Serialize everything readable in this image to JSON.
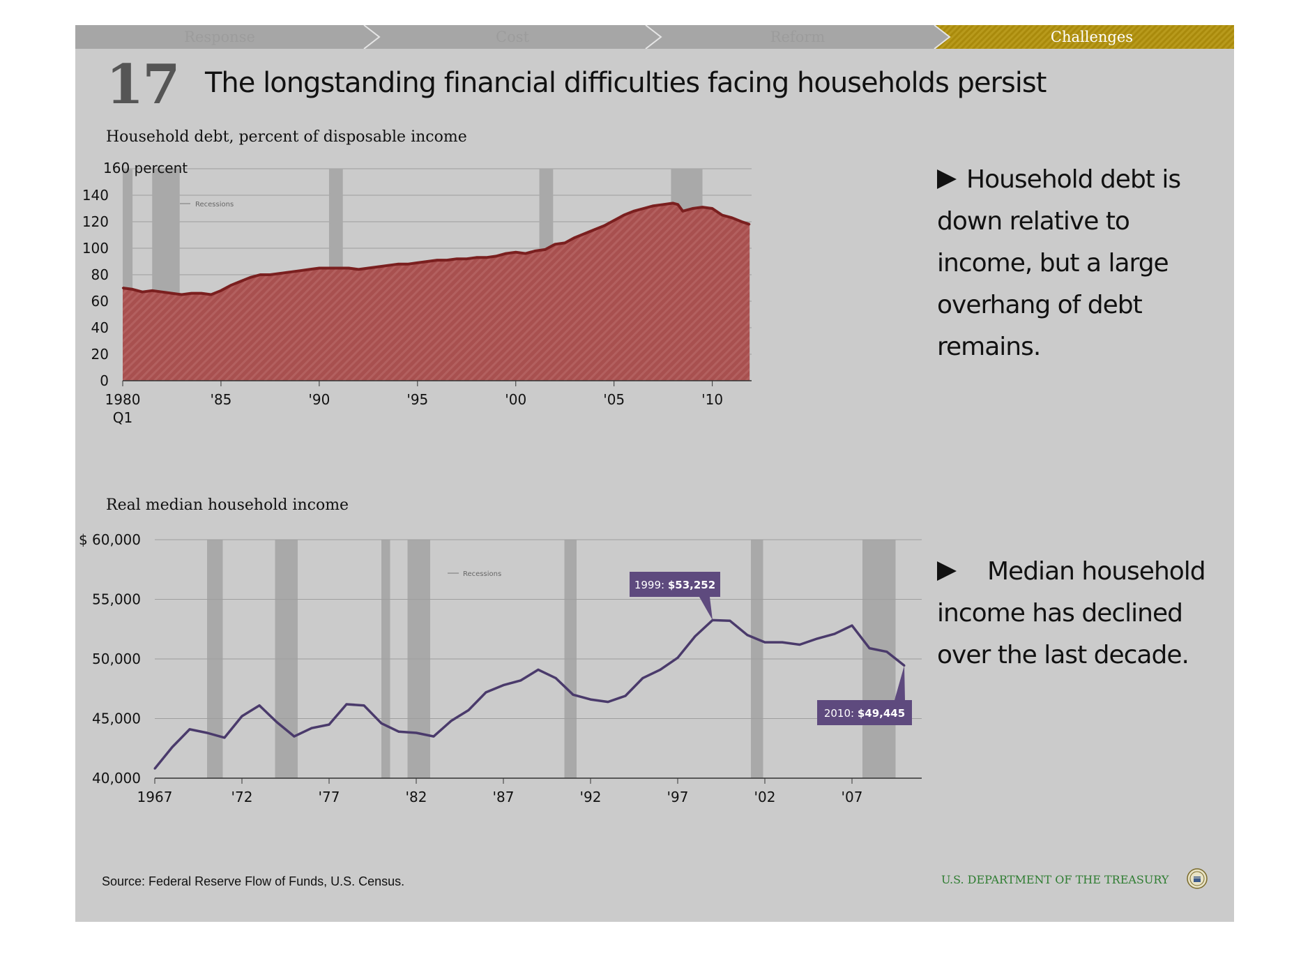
{
  "nav": {
    "tabs": [
      {
        "label": "Response",
        "active": false
      },
      {
        "label": "Cost",
        "active": false
      },
      {
        "label": "Reform",
        "active": false
      },
      {
        "label": "Challenges",
        "active": true
      }
    ],
    "colors": {
      "inactive": "#a6a6a6",
      "active": "#a98a0c"
    }
  },
  "slide": {
    "number": "17",
    "title": "The longstanding financial difficulties facing households persist"
  },
  "chart_data": [
    {
      "type": "area",
      "title": "Household debt, percent of disposable income",
      "ytop_label": "160 percent",
      "yticks": [
        0,
        20,
        40,
        60,
        80,
        100,
        120,
        140
      ],
      "ylim": [
        0,
        160
      ],
      "xlim": [
        1980,
        2012
      ],
      "xtick_values": [
        1980,
        1985,
        1990,
        1995,
        2000,
        2005,
        2010
      ],
      "xtick_labels": [
        "1980",
        "'85",
        "'90",
        "'95",
        "'00",
        "'05",
        "'10"
      ],
      "xtick_sublabel": "Q1",
      "grid": true,
      "legend_label": "Recessions",
      "recessions": [
        [
          1980.0,
          1980.5
        ],
        [
          1981.5,
          1982.9
        ],
        [
          1990.5,
          1991.2
        ],
        [
          2001.2,
          2001.9
        ],
        [
          2007.9,
          2009.5
        ]
      ],
      "x": [
        1980,
        1980.5,
        1981,
        1981.5,
        1982,
        1982.5,
        1983,
        1983.5,
        1984,
        1984.5,
        1985,
        1985.5,
        1986,
        1986.5,
        1987,
        1987.5,
        1988,
        1988.5,
        1989,
        1989.5,
        1990,
        1990.5,
        1991,
        1991.5,
        1992,
        1992.5,
        1993,
        1993.5,
        1994,
        1994.5,
        1995,
        1995.5,
        1996,
        1996.5,
        1997,
        1997.5,
        1998,
        1998.5,
        1999,
        1999.5,
        2000,
        2000.5,
        2001,
        2001.5,
        2002,
        2002.5,
        2003,
        2003.5,
        2004,
        2004.5,
        2005,
        2005.5,
        2006,
        2006.5,
        2007,
        2007.5,
        2008,
        2008.25,
        2008.5,
        2009,
        2009.5,
        2010,
        2010.5,
        2011,
        2011.5,
        2011.9
      ],
      "values": [
        70,
        69,
        67,
        68,
        67,
        66,
        65,
        66,
        66,
        65,
        68,
        72,
        75,
        78,
        80,
        80,
        81,
        82,
        83,
        84,
        85,
        85,
        85,
        85,
        84,
        85,
        86,
        87,
        88,
        88,
        89,
        90,
        91,
        91,
        92,
        92,
        93,
        93,
        94,
        96,
        97,
        96,
        98,
        99,
        103,
        104,
        108,
        111,
        114,
        117,
        121,
        125,
        128,
        130,
        132,
        133,
        134,
        133,
        128,
        130,
        131,
        130,
        125,
        123,
        120,
        118
      ],
      "fill_color": "#a8504f",
      "line_color": "#7a1f1f",
      "recession_color": "#a9a9a9"
    },
    {
      "type": "line",
      "title": "Real median household income",
      "yticks": [
        40000,
        45000,
        50000,
        55000,
        60000
      ],
      "ytick_labels": [
        "40,000",
        "45,000",
        "50,000",
        "55,000",
        "$ 60,000"
      ],
      "ylim": [
        40000,
        60000
      ],
      "xlim": [
        1967,
        2011
      ],
      "xtick_values": [
        1967,
        1972,
        1977,
        1982,
        1987,
        1992,
        1997,
        2002,
        2007
      ],
      "xtick_labels": [
        "1967",
        "'72",
        "'77",
        "'82",
        "'87",
        "'92",
        "'97",
        "'02",
        "'07"
      ],
      "grid": true,
      "legend_label": "Recessions",
      "recessions": [
        [
          1970.0,
          1970.9
        ],
        [
          1973.9,
          1975.2
        ],
        [
          1980.0,
          1980.5
        ],
        [
          1981.5,
          1982.8
        ],
        [
          1990.5,
          1991.2
        ],
        [
          2001.2,
          2001.9
        ],
        [
          2007.6,
          2009.5
        ]
      ],
      "x": [
        1967,
        1968,
        1969,
        1970,
        1971,
        1972,
        1973,
        1974,
        1975,
        1976,
        1977,
        1978,
        1979,
        1980,
        1981,
        1982,
        1983,
        1984,
        1985,
        1986,
        1987,
        1988,
        1989,
        1990,
        1991,
        1992,
        1993,
        1994,
        1995,
        1996,
        1997,
        1998,
        1999,
        2000,
        2001,
        2002,
        2003,
        2004,
        2005,
        2006,
        2007,
        2008,
        2009,
        2010
      ],
      "values": [
        40800,
        42600,
        44100,
        43800,
        43400,
        45200,
        46100,
        44700,
        43500,
        44200,
        44500,
        46200,
        46100,
        44600,
        43900,
        43800,
        43500,
        44800,
        45700,
        47200,
        47800,
        48200,
        49100,
        48400,
        47000,
        46600,
        46400,
        46900,
        48400,
        49100,
        50100,
        51900,
        53252,
        53200,
        52000,
        51400,
        51400,
        51200,
        51700,
        52100,
        52800,
        50900,
        50600,
        49445
      ],
      "line_color": "#4a3a6b",
      "annotations": [
        {
          "year": 1999,
          "label_prefix": "1999: ",
          "label_value": "$53,252"
        },
        {
          "year": 2010,
          "label_prefix": "2010: ",
          "label_value": "$49,445"
        }
      ],
      "annotation_color": "#5e4a7e",
      "recession_color": "#a9a9a9"
    }
  ],
  "takeaways": [
    {
      "text": "Household debt is down relative to income, but a large overhang of debt remains."
    },
    {
      "text": "Median household income has declined over the last decade."
    }
  ],
  "footer": {
    "source": "Source: Federal Reserve Flow of Funds, U.S. Census.",
    "agency": "U.S. DEPARTMENT OF THE TREASURY",
    "seal_icon": "treasury-seal-icon"
  }
}
